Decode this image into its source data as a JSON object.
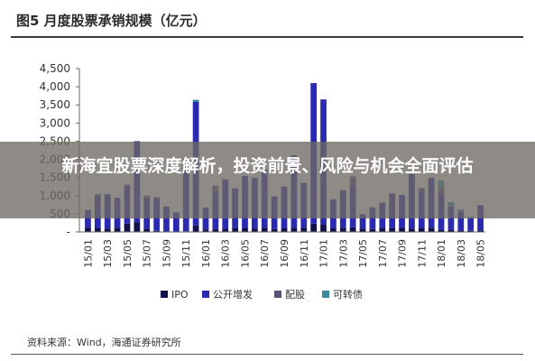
{
  "figure": {
    "title": "图5 月度股票承销规模（亿元）"
  },
  "overlay": {
    "headline": "新海宜股票深度解析，投资前景、风险与机会全面评估"
  },
  "source": "资料来源：Wind，海通证券研究所",
  "colors": {
    "IPO": "#12124a",
    "公开增发": "#2a2ab0",
    "配股": "#55557a",
    "可转债": "#3a8a9a"
  },
  "chart_data": {
    "type": "bar",
    "stacked": true,
    "title": "图5 月度股票承销规模（亿元）",
    "ylabel": "",
    "xlabel": "",
    "ylim": [
      0,
      4500
    ],
    "yticks": [
      "4,500",
      "4,000",
      "3,500",
      "3,000",
      "2,500",
      "2,000",
      "1,500",
      "1,000",
      "500",
      "-"
    ],
    "ytick_values": [
      4500,
      4000,
      3500,
      3000,
      2500,
      2000,
      1500,
      1000,
      500,
      0
    ],
    "legend_position": "bottom",
    "categories": [
      "15/01",
      "15/02",
      "15/03",
      "15/04",
      "15/05",
      "15/06",
      "15/07",
      "15/08",
      "15/09",
      "15/10",
      "15/11",
      "15/12",
      "16/01",
      "16/02",
      "16/03",
      "16/04",
      "16/05",
      "16/06",
      "16/07",
      "16/08",
      "16/09",
      "16/10",
      "16/11",
      "16/12",
      "17/01",
      "17/02",
      "17/03",
      "17/04",
      "17/05",
      "17/06",
      "17/07",
      "17/08",
      "17/09",
      "17/10",
      "17/11",
      "17/12",
      "18/01",
      "18/02",
      "18/03",
      "18/04",
      "18/05"
    ],
    "xtick_labels": [
      "15/01",
      "15/03",
      "15/05",
      "15/07",
      "15/09",
      "15/11",
      "16/01",
      "16/03",
      "16/05",
      "16/07",
      "16/09",
      "16/11",
      "17/01",
      "17/03",
      "17/05",
      "17/07",
      "17/09",
      "17/11",
      "18/01",
      "18/03",
      "18/05"
    ],
    "series": [
      {
        "name": "IPO",
        "values": [
          120,
          100,
          90,
          110,
          230,
          260,
          90,
          30,
          0,
          0,
          20,
          180,
          70,
          80,
          90,
          100,
          110,
          90,
          120,
          80,
          100,
          110,
          120,
          230,
          200,
          100,
          120,
          130,
          90,
          80,
          110,
          100,
          120,
          90,
          110,
          120,
          60,
          50,
          40,
          30,
          40
        ]
      },
      {
        "name": "公开增发",
        "values": [
          480,
          880,
          950,
          830,
          1040,
          2240,
          850,
          920,
          700,
          540,
          2000,
          3400,
          600,
          1000,
          1360,
          1100,
          1430,
          1400,
          1600,
          900,
          1150,
          2000,
          1230,
          3870,
          3450,
          800,
          1030,
          1150,
          400,
          600,
          700,
          960,
          900,
          1500,
          1000,
          1370,
          1000,
          650,
          520,
          350,
          700
        ]
      },
      {
        "name": "配股",
        "values": [
          0,
          40,
          0,
          0,
          30,
          0,
          60,
          0,
          0,
          0,
          0,
          0,
          0,
          200,
          0,
          0,
          0,
          0,
          0,
          0,
          0,
          0,
          0,
          0,
          0,
          0,
          0,
          250,
          0,
          0,
          0,
          0,
          0,
          0,
          100,
          0,
          160,
          0,
          0,
          0,
          0
        ]
      },
      {
        "name": "可转债",
        "values": [
          0,
          20,
          0,
          0,
          0,
          0,
          0,
          0,
          0,
          0,
          0,
          60,
          0,
          0,
          0,
          0,
          0,
          0,
          0,
          0,
          0,
          0,
          0,
          0,
          0,
          0,
          0,
          0,
          0,
          0,
          0,
          0,
          0,
          0,
          0,
          0,
          200,
          120,
          60,
          40,
          0
        ]
      }
    ]
  }
}
